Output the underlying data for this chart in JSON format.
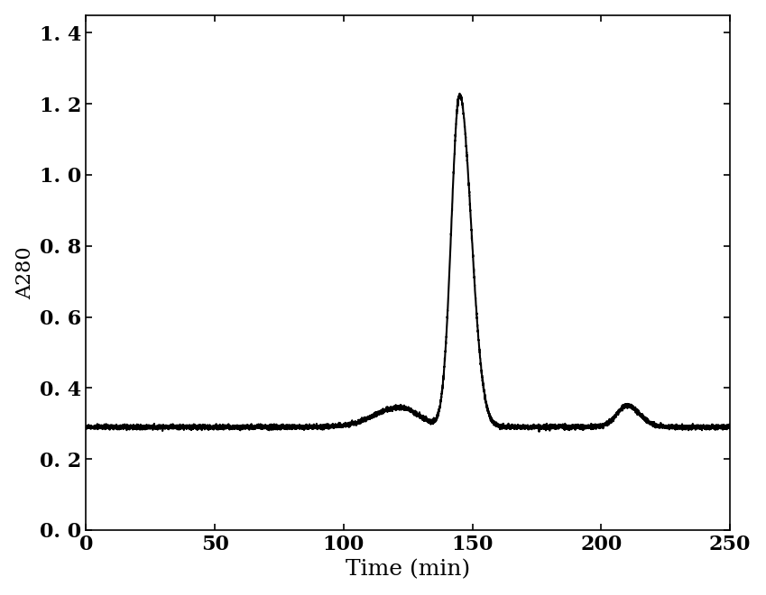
{
  "xlabel": "Time (min)",
  "ylabel": "A280",
  "xlim": [
    0,
    250
  ],
  "ylim": [
    0.0,
    1.45
  ],
  "xticks": [
    0,
    50,
    100,
    150,
    200,
    250
  ],
  "yticks": [
    0.0,
    0.2,
    0.4,
    0.6,
    0.8,
    1.0,
    1.2,
    1.4
  ],
  "baseline": 0.29,
  "line_color": "#000000",
  "line_width": 1.5,
  "bg_color": "#ffffff",
  "xlabel_fontsize": 18,
  "ylabel_fontsize": 16,
  "tick_fontsize": 16
}
